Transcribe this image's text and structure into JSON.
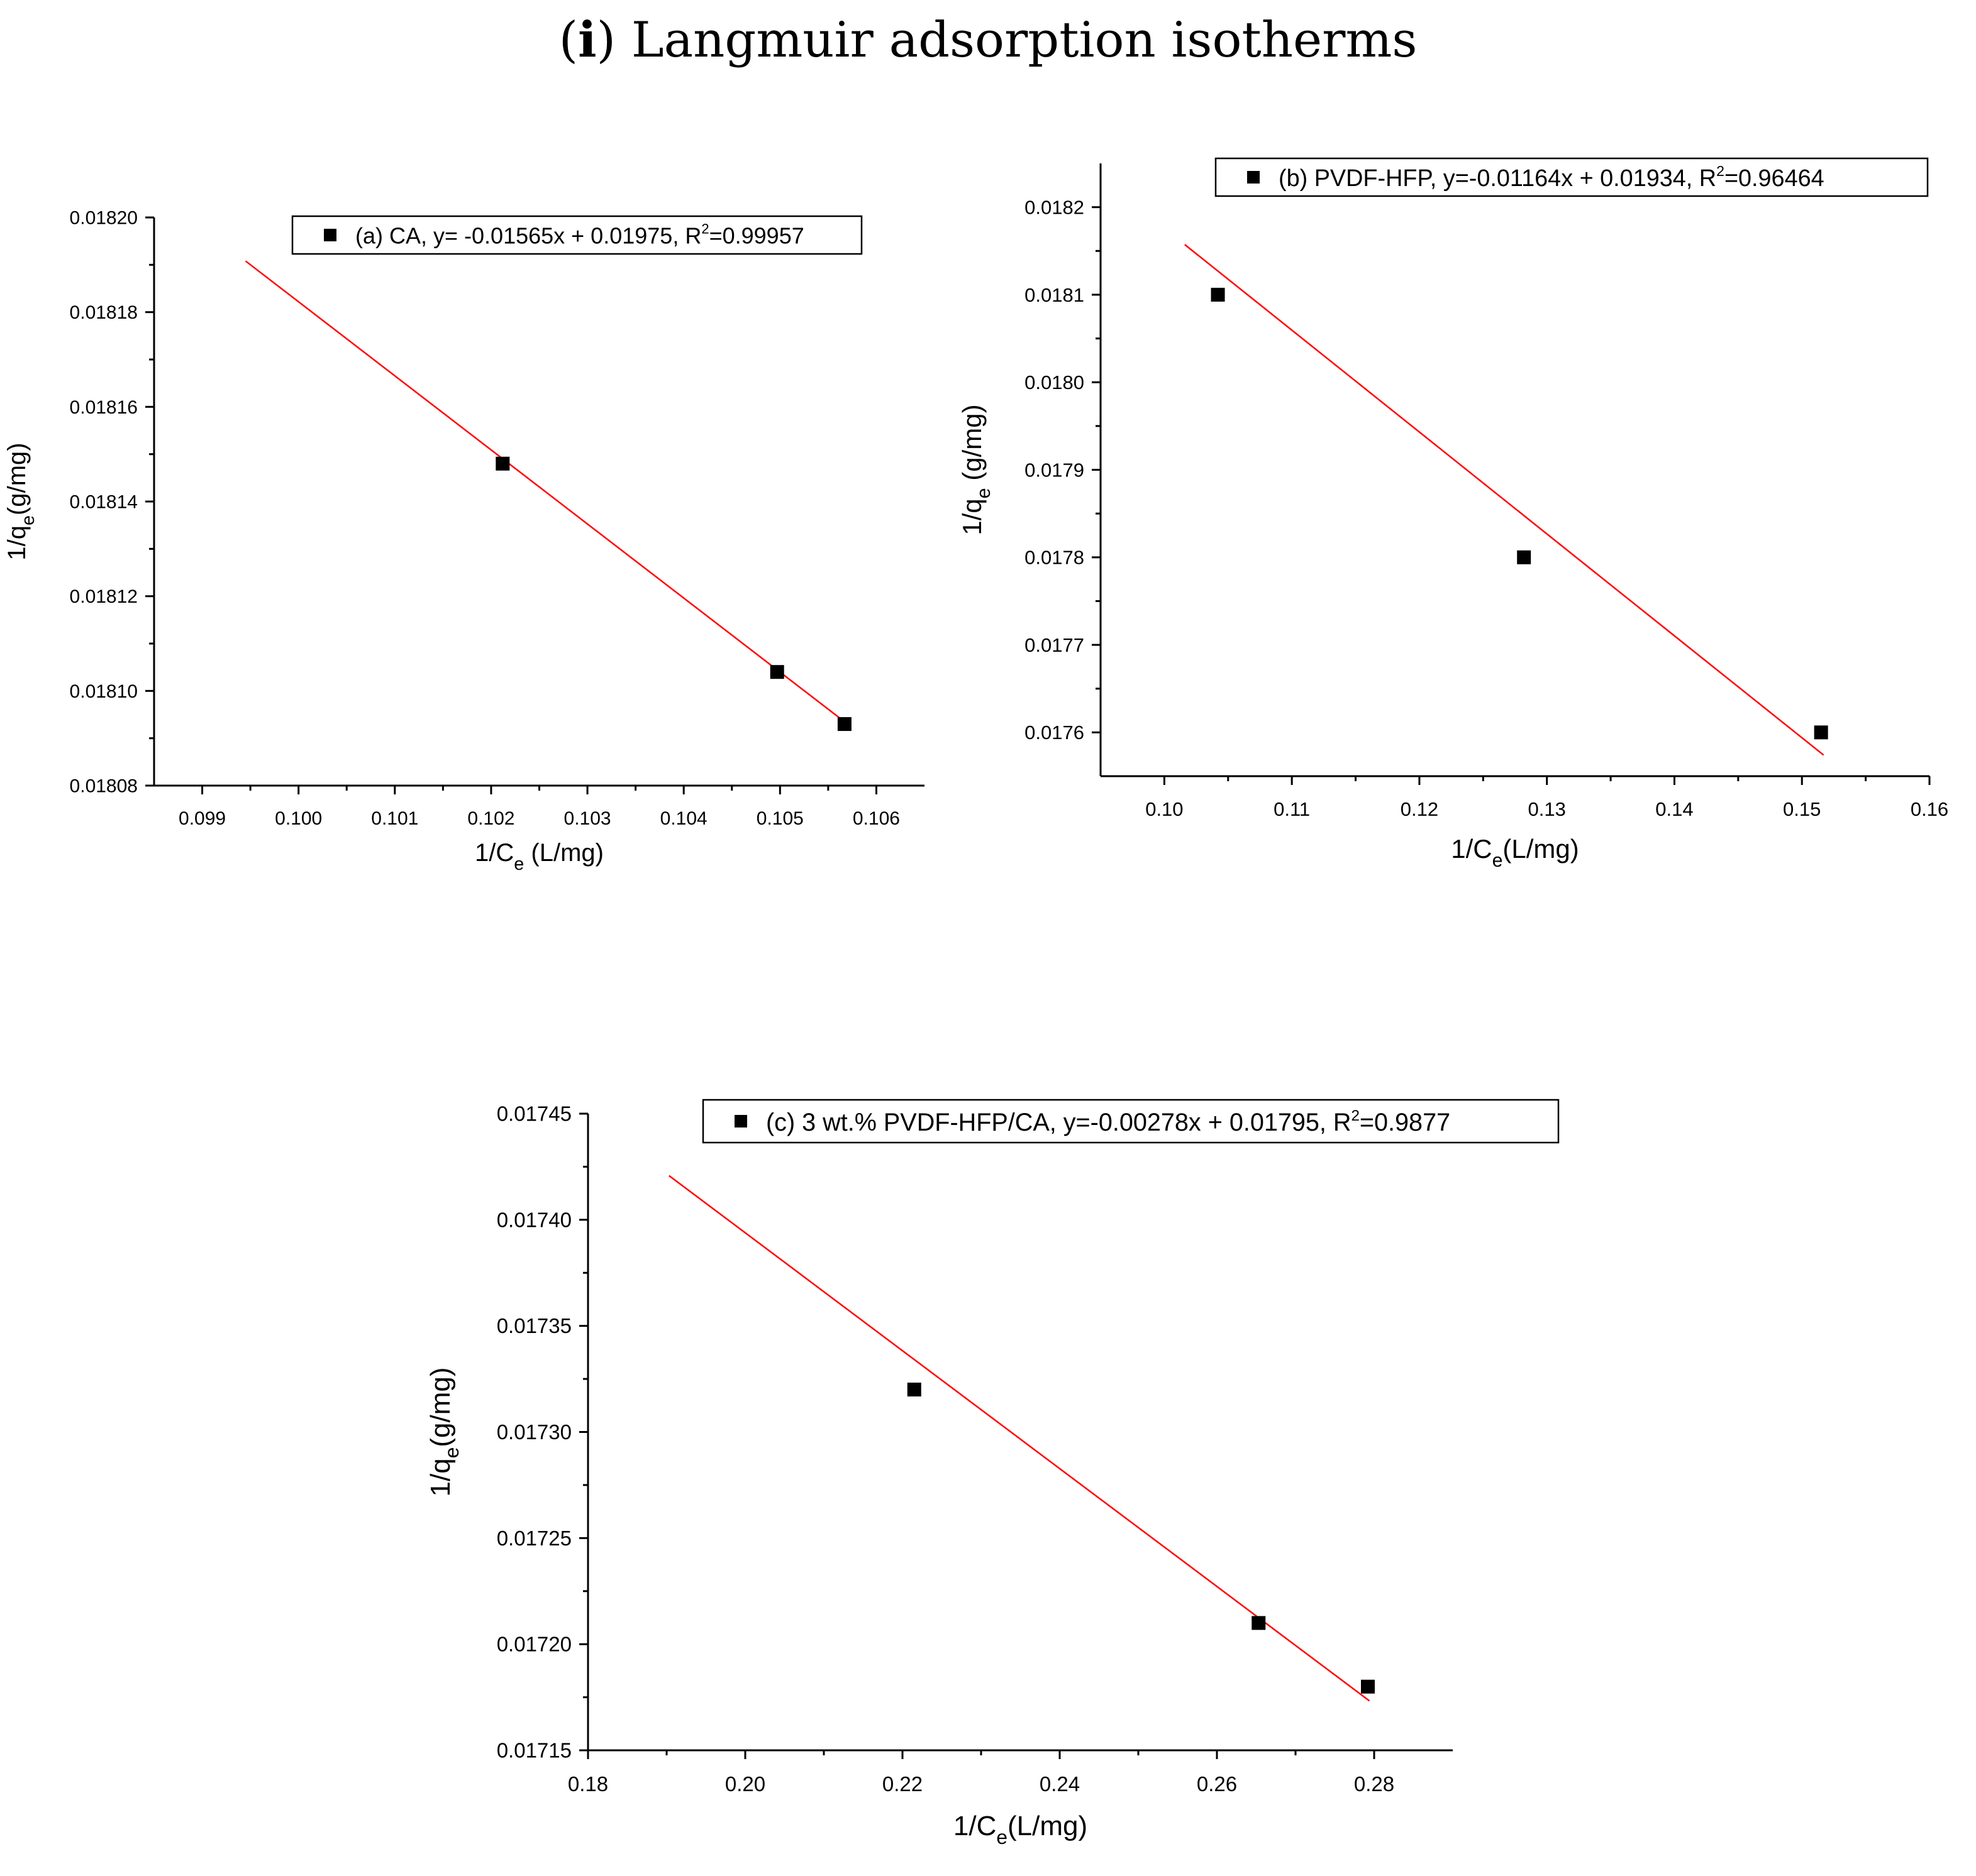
{
  "figure": {
    "title_letter": "i",
    "title_text": "Langmuir adsorption isotherms"
  },
  "colors": {
    "fit_line": "#ff0000",
    "marker": "#000000",
    "axis": "#000000"
  },
  "chart_data": [
    {
      "id": "a",
      "type": "scatter",
      "xlabel": "1/C",
      "xlabel_sub": "e",
      "xlabel_rest": " (L/mg)",
      "ylabel": "1/q",
      "ylabel_sub": "e",
      "ylabel_rest": "(g/mg)",
      "xlim": [
        0.0985,
        0.1065
      ],
      "ylim": [
        0.01808,
        0.0182
      ],
      "x_ticks": [
        0.099,
        0.1,
        0.101,
        0.102,
        0.103,
        0.104,
        0.105,
        0.106
      ],
      "x_tick_labels": [
        "0.099",
        "0.100",
        "0.101",
        "0.102",
        "0.103",
        "0.104",
        "0.105",
        "0.106"
      ],
      "y_ticks": [
        0.01808,
        0.0181,
        0.01812,
        0.01814,
        0.01816,
        0.01818,
        0.0182
      ],
      "y_tick_labels": [
        "0.01808",
        "0.01810",
        "0.01812",
        "0.01814",
        "0.01816",
        "0.01818",
        "0.01820"
      ],
      "points": {
        "x": [
          0.10212,
          0.10497,
          0.10567
        ],
        "y": [
          0.018148,
          0.018104,
          0.018093
        ]
      },
      "fit": {
        "x": [
          0.09945,
          0.10572
        ],
        "y": [
          0.0181908,
          0.0180927
        ]
      },
      "legend": {
        "placement": "top-right",
        "text": "(a) CA, y= -0.01565x + 0.01975, R",
        "sup": "2",
        "tail": "=0.99957"
      }
    },
    {
      "id": "b",
      "type": "scatter",
      "xlabel": "1/C",
      "xlabel_sub": "e",
      "xlabel_rest": "(L/mg)",
      "ylabel": "1/q",
      "ylabel_sub": "e",
      "ylabel_rest": " (g/mg)",
      "xlim": [
        0.095,
        0.16
      ],
      "ylim": [
        0.01755,
        0.01825
      ],
      "x_ticks": [
        0.1,
        0.11,
        0.12,
        0.13,
        0.14,
        0.15,
        0.16
      ],
      "x_tick_labels": [
        "0.10",
        "0.11",
        "0.12",
        "0.13",
        "0.14",
        "0.15",
        "0.16"
      ],
      "y_ticks": [
        0.0176,
        0.0177,
        0.0178,
        0.0179,
        0.018,
        0.0181,
        0.0182
      ],
      "y_tick_labels": [
        "0.0176",
        "0.0177",
        "0.0178",
        "0.0179",
        "0.0180",
        "0.0181",
        "0.0182"
      ],
      "points": {
        "x": [
          0.1042,
          0.1282,
          0.1515
        ],
        "y": [
          0.0181,
          0.0178,
          0.0176
        ]
      },
      "fit": {
        "x": [
          0.1016,
          0.1517
        ],
        "y": [
          0.0181573,
          0.0175741
        ]
      },
      "legend": {
        "placement": "top-right",
        "text": "(b) PVDF-HFP, y=-0.01164x + 0.01934, R",
        "sup": "2",
        "tail": "=0.96464"
      }
    },
    {
      "id": "c",
      "type": "scatter",
      "xlabel": "1/C",
      "xlabel_sub": "e",
      "xlabel_rest": "(L/mg)",
      "ylabel": "1/q",
      "ylabel_sub": "e",
      "ylabel_rest": "(g/mg)",
      "xlim": [
        0.18,
        0.29
      ],
      "ylim": [
        0.01715,
        0.01745
      ],
      "x_ticks": [
        0.18,
        0.2,
        0.22,
        0.24,
        0.26,
        0.28
      ],
      "x_tick_labels": [
        "0.18",
        "0.20",
        "0.22",
        "0.24",
        "0.26",
        "0.28"
      ],
      "y_ticks": [
        0.01715,
        0.0172,
        0.01725,
        0.0173,
        0.01735,
        0.0174,
        0.01745
      ],
      "y_tick_labels": [
        "0.01715",
        "0.01720",
        "0.01725",
        "0.01730",
        "0.01735",
        "0.01740",
        "0.01745"
      ],
      "points": {
        "x": [
          0.2215,
          0.2653,
          0.2792
        ],
        "y": [
          0.01732,
          0.01721,
          0.01718
        ]
      },
      "fit": {
        "x": [
          0.1903,
          0.2794
        ],
        "y": [
          0.0174208,
          0.0171733
        ]
      },
      "legend": {
        "placement": "top",
        "text": "(c) 3 wt.% PVDF-HFP/CA, y=-0.00278x + 0.01795, R",
        "sup": "2",
        "tail": "=0.9877"
      }
    }
  ]
}
